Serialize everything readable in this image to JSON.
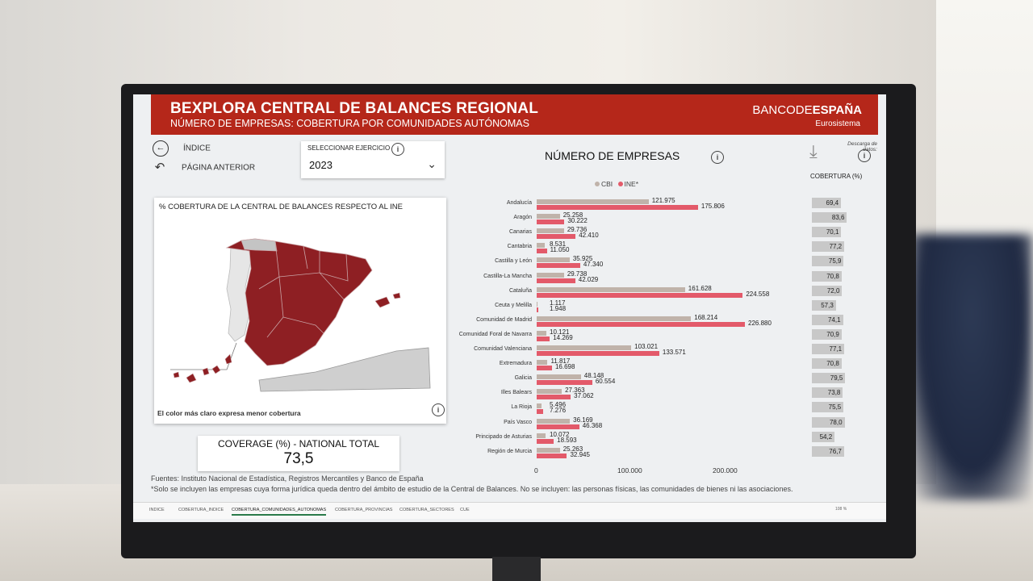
{
  "header": {
    "title": "BEXPLORA CENTRAL DE BALANCES REGIONAL",
    "subtitle": "NÚMERO DE EMPRESAS: COBERTURA POR COMUNIDADES AUTÓNOMAS",
    "bank_prefix": "BANCODE",
    "bank_bold": "ESPAÑA",
    "bank_sub": "Eurosistema"
  },
  "nav": {
    "index": "ÍNDICE",
    "back": "PÁGINA ANTERIOR"
  },
  "selector": {
    "label": "SELECCIONAR EJERCICIO",
    "value": "2023"
  },
  "map": {
    "title": "% COBERTURA DE LA CENTRAL DE BALANCES RESPECTO AL INE",
    "note": "El color más claro expresa menor cobertura"
  },
  "kpi": {
    "label": "COVERAGE (%) - NATIONAL TOTAL",
    "value": "73,5"
  },
  "download": {
    "label": "Descarga de datos:"
  },
  "coverage_header": "COBERTURA (%)",
  "colors": {
    "cbi": "#c0b3aa",
    "ine": "#e35a6a",
    "header": "#b5271a"
  },
  "chart_data": {
    "type": "bar",
    "title": "NÚMERO DE EMPRESAS",
    "orientation": "horizontal",
    "categories": [
      "Andalucía",
      "Aragón",
      "Canarias",
      "Cantabria",
      "Castilla y León",
      "Castilla-La Mancha",
      "Cataluña",
      "Ceuta y Melilla",
      "Comunidad de Madrid",
      "Comunidad Foral de Navarra",
      "Comunidad Valenciana",
      "Extremadura",
      "Galicia",
      "Illes Balears",
      "La Rioja",
      "País Vasco",
      "Principado de Asturias",
      "Región de Murcia"
    ],
    "series": [
      {
        "name": "CBI",
        "values": [
          121975,
          25258,
          29736,
          8531,
          35925,
          29738,
          161628,
          1117,
          168214,
          10121,
          103021,
          11817,
          48148,
          27363,
          5496,
          36169,
          10072,
          25263
        ],
        "labels": [
          "121.975",
          "25.258",
          "29.736",
          "8.531",
          "35.925",
          "29.738",
          "161.628",
          "1.117",
          "168.214",
          "10.121",
          "103.021",
          "11.817",
          "48.148",
          "27.363",
          "5.496",
          "36.169",
          "10.072",
          "25.263"
        ]
      },
      {
        "name": "INE*",
        "values": [
          175806,
          30222,
          42410,
          11050,
          47340,
          42029,
          224558,
          1948,
          226880,
          14269,
          133571,
          16698,
          60554,
          37062,
          7276,
          46368,
          18593,
          32945
        ],
        "labels": [
          "175.806",
          "30.222",
          "42.410",
          "11.050",
          "47.340",
          "42.029",
          "224.558",
          "1.948",
          "226.880",
          "14.269",
          "133.571",
          "16.698",
          "60.554",
          "37.062",
          "7.276",
          "46.368",
          "18.593",
          "32.945"
        ]
      }
    ],
    "coverage": [
      "69,4",
      "83,6",
      "70,1",
      "77,2",
      "75,9",
      "70,8",
      "72,0",
      "57,3",
      "74,1",
      "70,9",
      "77,1",
      "70,8",
      "79,5",
      "73,8",
      "75,5",
      "78,0",
      "54,2",
      "76,7"
    ],
    "coverage_values": [
      69.4,
      83.6,
      70.1,
      77.2,
      75.9,
      70.8,
      72.0,
      57.3,
      74.1,
      70.9,
      77.1,
      70.8,
      79.5,
      73.8,
      75.5,
      78.0,
      54.2,
      76.7
    ],
    "xticks": [
      "0",
      "100.000",
      "200.000"
    ],
    "xlim": [
      0,
      260000
    ]
  },
  "footer": {
    "sources": "Fuentes: Instituto Nacional de Estadística, Registros Mercantiles y Banco de España",
    "note": "*Solo se incluyen las empresas cuya forma jurídica queda dentro del ámbito de estudio de la Central de Balances. No se incluyen: las personas físicas, las comunidades de bienes ni las asociaciones."
  },
  "tabs": [
    "INDICE",
    "COBERTURA_INDICE",
    "COBERTURA_COMUNIDADES_AUTONOMAS",
    "COBERTURA_PROVINCIAS",
    "COBERTURA_SECTORES",
    "CUE"
  ],
  "zoom": "108 %"
}
